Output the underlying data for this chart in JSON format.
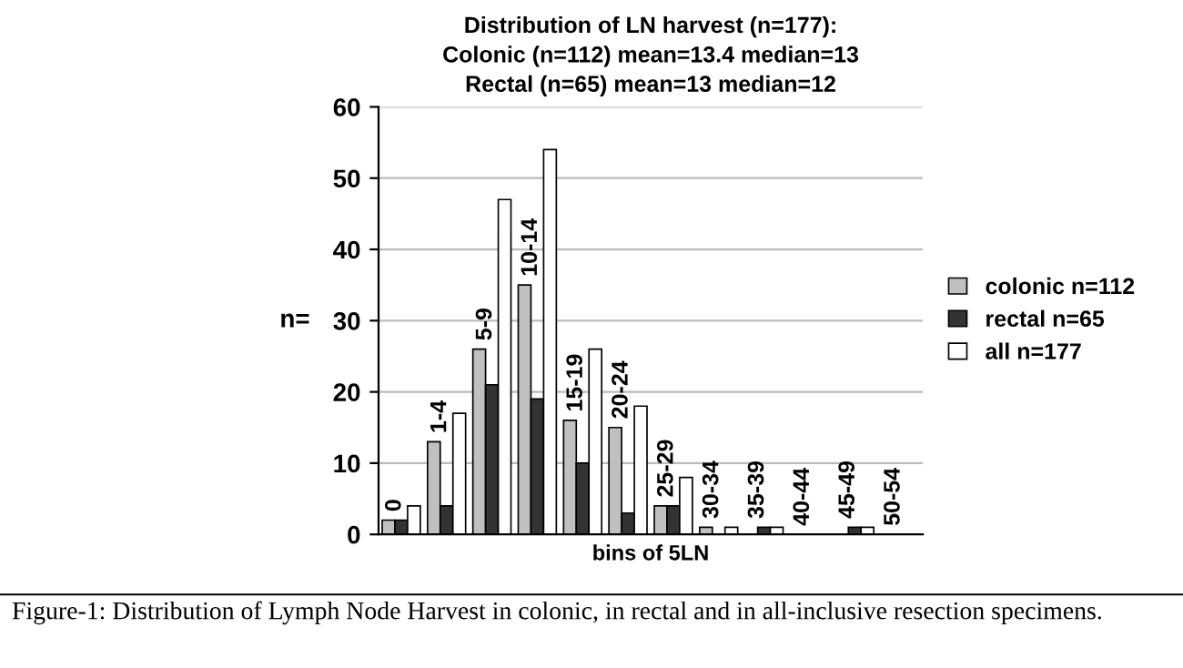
{
  "chart_data": {
    "type": "bar",
    "title": "Distribution of LN harvest (n=177):\nColonic (n=112) mean=13.4 median=13\nRectal (n=65) mean=13 median=12",
    "xlabel": "bins of 5LN",
    "ylabel": "n=",
    "categories": [
      "0",
      "1-4",
      "5-9",
      "10-14",
      "15-19",
      "20-24",
      "25-29",
      "30-34",
      "35-39",
      "40-44",
      "45-49",
      "50-54"
    ],
    "series": [
      {
        "name": "colonic n=112",
        "color": "#c0c0c0",
        "values": [
          2,
          13,
          26,
          35,
          16,
          15,
          4,
          1,
          0,
          0,
          0,
          0
        ]
      },
      {
        "name": "rectal n=65",
        "color": "#333333",
        "values": [
          2,
          4,
          21,
          19,
          10,
          3,
          4,
          0,
          1,
          0,
          1,
          0
        ]
      },
      {
        "name": "all n=177",
        "color": "#ffffff",
        "values": [
          4,
          17,
          47,
          54,
          26,
          18,
          8,
          1,
          1,
          0,
          1,
          0
        ]
      }
    ],
    "ylim": [
      0,
      60
    ],
    "yticks": [
      0,
      10,
      20,
      30,
      40,
      50,
      60
    ],
    "grid": "y",
    "legend": "right",
    "tick_labels": "y",
    "annotations": [
      "Figure-1: Distribution of Lymph Node Harvest in colonic, in rectal and in all-inclusive resection specimens."
    ]
  }
}
